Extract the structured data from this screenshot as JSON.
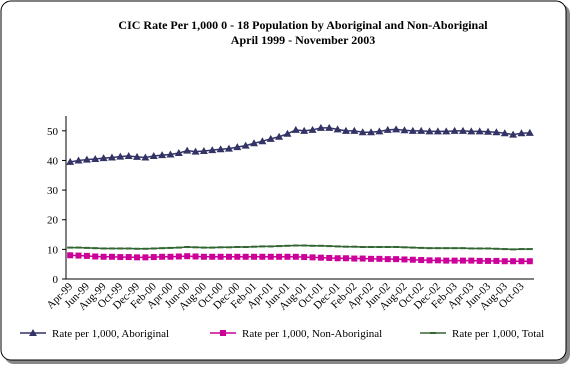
{
  "chart_data": {
    "type": "line",
    "title": "CIC Rate Per 1,000 0 - 18 Population by Aboriginal and Non-Aboriginal",
    "subtitle": "April 1999 - November 2003",
    "categories": [
      "Apr-99",
      null,
      "Jun-99",
      null,
      "Aug-99",
      null,
      "Oct-99",
      null,
      "Dec-99",
      null,
      "Feb-00",
      null,
      "Apr-00",
      null,
      "Jun-00",
      null,
      "Aug-00",
      null,
      "Oct-00",
      null,
      "Dec-00",
      null,
      "Feb-01",
      null,
      "Apr-01",
      null,
      "Jun-01",
      null,
      "Aug-01",
      null,
      "Oct-01",
      null,
      "Dec-01",
      null,
      "Feb-02",
      null,
      "Apr-02",
      null,
      "Jun-02",
      null,
      "Aug-02",
      null,
      "Oct-02",
      null,
      "Dec-02",
      null,
      "Feb-03",
      null,
      "Apr-03",
      null,
      "Jun-03",
      null,
      "Aug-03",
      null,
      "Oct-03",
      null
    ],
    "series": [
      {
        "name": "Rate per 1,000, Aboriginal",
        "color": "#333366",
        "marker": "triangle",
        "values": [
          39.5,
          40,
          40.3,
          40.5,
          40.8,
          41,
          41.3,
          41.5,
          41.2,
          41,
          41.5,
          41.8,
          42,
          42.5,
          43.3,
          43,
          43.2,
          43.5,
          43.8,
          44,
          44.5,
          45,
          45.8,
          46.5,
          47.3,
          48,
          49,
          50.3,
          50,
          50.3,
          51,
          51,
          50.5,
          50,
          50,
          49.5,
          49.5,
          49.8,
          50.3,
          50.5,
          50.2,
          50,
          50,
          49.8,
          49.8,
          49.8,
          50,
          50,
          49.8,
          49.8,
          49.7,
          49.5,
          49.2,
          48.7,
          49.2,
          49.3
        ]
      },
      {
        "name": "Rate per 1,000, Non-Aboriginal",
        "color": "#cc0099",
        "marker": "square",
        "values": [
          8.0,
          7.9,
          7.8,
          7.6,
          7.5,
          7.5,
          7.4,
          7.4,
          7.3,
          7.3,
          7.4,
          7.5,
          7.5,
          7.6,
          7.7,
          7.6,
          7.5,
          7.5,
          7.5,
          7.5,
          7.5,
          7.5,
          7.5,
          7.5,
          7.5,
          7.5,
          7.5,
          7.5,
          7.4,
          7.3,
          7.2,
          7.1,
          7.0,
          7.0,
          6.9,
          6.9,
          6.8,
          6.8,
          6.7,
          6.7,
          6.6,
          6.5,
          6.4,
          6.3,
          6.3,
          6.2,
          6.2,
          6.2,
          6.2,
          6.1,
          6.1,
          6.1,
          6.0,
          6.0,
          6.0,
          6.0
        ]
      },
      {
        "name": "Rate per 1,000, Total",
        "color": "#336633",
        "marker": "dash",
        "values": [
          10.6,
          10.6,
          10.5,
          10.4,
          10.3,
          10.3,
          10.3,
          10.3,
          10.2,
          10.2,
          10.3,
          10.4,
          10.5,
          10.6,
          10.8,
          10.7,
          10.6,
          10.6,
          10.7,
          10.7,
          10.8,
          10.8,
          10.9,
          11.0,
          11.0,
          11.1,
          11.2,
          11.3,
          11.3,
          11.2,
          11.2,
          11.1,
          11.0,
          10.9,
          10.9,
          10.8,
          10.8,
          10.8,
          10.8,
          10.8,
          10.7,
          10.6,
          10.5,
          10.4,
          10.4,
          10.4,
          10.4,
          10.4,
          10.3,
          10.3,
          10.3,
          10.2,
          10.1,
          10.0,
          10.1,
          10.1
        ]
      }
    ],
    "ylim": [
      0,
      55
    ],
    "yticks": [
      0,
      10,
      20,
      30,
      40,
      50
    ],
    "grid": false
  }
}
